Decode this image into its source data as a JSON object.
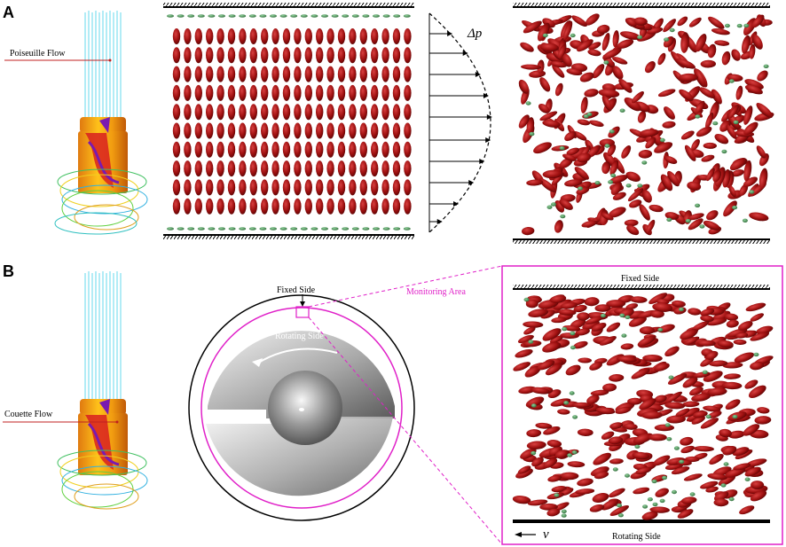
{
  "panels": {
    "a": {
      "letter": "A",
      "device_label": "Poiseuille Flow",
      "pressure_label": "Δp"
    },
    "b": {
      "letter": "B",
      "device_label": "Couette Flow",
      "fixed_side_label": "Fixed Side",
      "rotating_side_label": "Rotating Side",
      "monitoring_label": "Monitoring Area",
      "box_fixed_label": "Fixed Side",
      "box_rotating_label": "Rotating Side",
      "velocity_label": "v"
    }
  },
  "colors": {
    "rbc": "#9e1010",
    "platelet": "#3f8a4a",
    "magenta": "#e020c8",
    "streamline": "#7fe0f0"
  }
}
